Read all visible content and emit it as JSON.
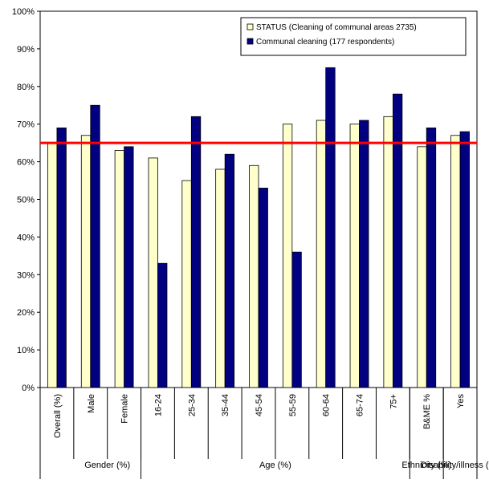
{
  "chart_data": {
    "type": "bar",
    "title": "",
    "xlabel": "",
    "ylabel": "",
    "ylim": [
      0,
      100
    ],
    "y_ticks": [
      "0%",
      "10%",
      "20%",
      "30%",
      "40%",
      "50%",
      "60%",
      "70%",
      "80%",
      "90%",
      "100%"
    ],
    "categories": [
      "Overall (%)",
      "Male",
      "Female",
      "16-24",
      "25-34",
      "35-44",
      "45-54",
      "55-59",
      "60-64",
      "65-74",
      "75+",
      "B&ME %",
      "Yes"
    ],
    "groups": [
      {
        "label": "Gender (%)",
        "start": 1,
        "end": 2
      },
      {
        "label": "Age (%)",
        "start": 3,
        "end": 10
      },
      {
        "label": "Ethnicity (%)",
        "start": 11,
        "end": 11
      },
      {
        "label": "Disability/illness (%)",
        "start": 12,
        "end": 12
      }
    ],
    "series": [
      {
        "name": "STATUS (Cleaning of communal areas 2735)",
        "color": "#ffffcc",
        "values": [
          65,
          67,
          63,
          61,
          55,
          58,
          59,
          70,
          71,
          70,
          72,
          64,
          67
        ]
      },
      {
        "name": "Communal cleaning (177 respondents)",
        "color": "#000080",
        "values": [
          69,
          75,
          64,
          33,
          72,
          62,
          53,
          36,
          85,
          71,
          78,
          69,
          68
        ]
      }
    ],
    "reference_line": {
      "value": 65,
      "color": "#ff0000"
    },
    "grid": false,
    "legend_position": "top-right"
  }
}
